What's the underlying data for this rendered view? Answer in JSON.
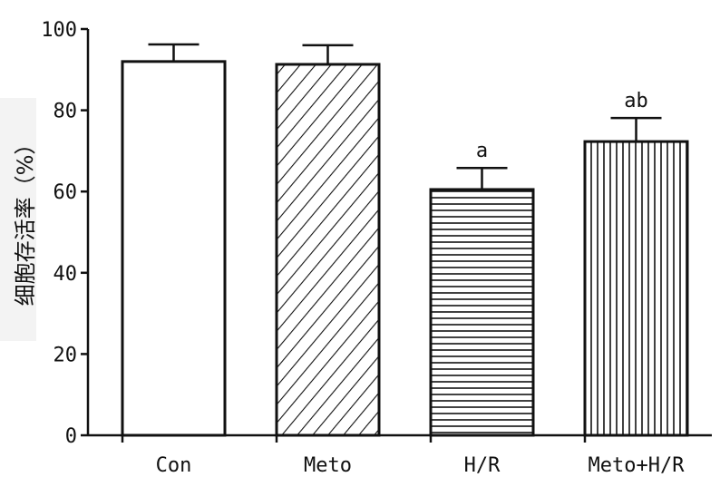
{
  "chart_data": {
    "type": "bar",
    "title": "",
    "xlabel": "",
    "ylabel": "细胞存活率（%）",
    "ylim": [
      0,
      100
    ],
    "yticks": [
      0,
      20,
      40,
      60,
      80,
      100
    ],
    "ytick_labels": [
      "0",
      "20",
      "40",
      "60",
      "80",
      "100"
    ],
    "categories": [
      "Con",
      "Meto",
      "H/R",
      "Meto+H/R"
    ],
    "values": [
      92,
      91.3,
      60.5,
      72.3
    ],
    "error_upper": [
      4.2,
      4.7,
      5.3,
      5.8
    ],
    "patterns": [
      "none",
      "diagonal",
      "horizontal",
      "vertical"
    ],
    "annotations": [
      "",
      "",
      "a",
      "ab"
    ],
    "grid": false,
    "colors": {
      "stroke": "#111111",
      "fill": "#ffffff"
    }
  }
}
